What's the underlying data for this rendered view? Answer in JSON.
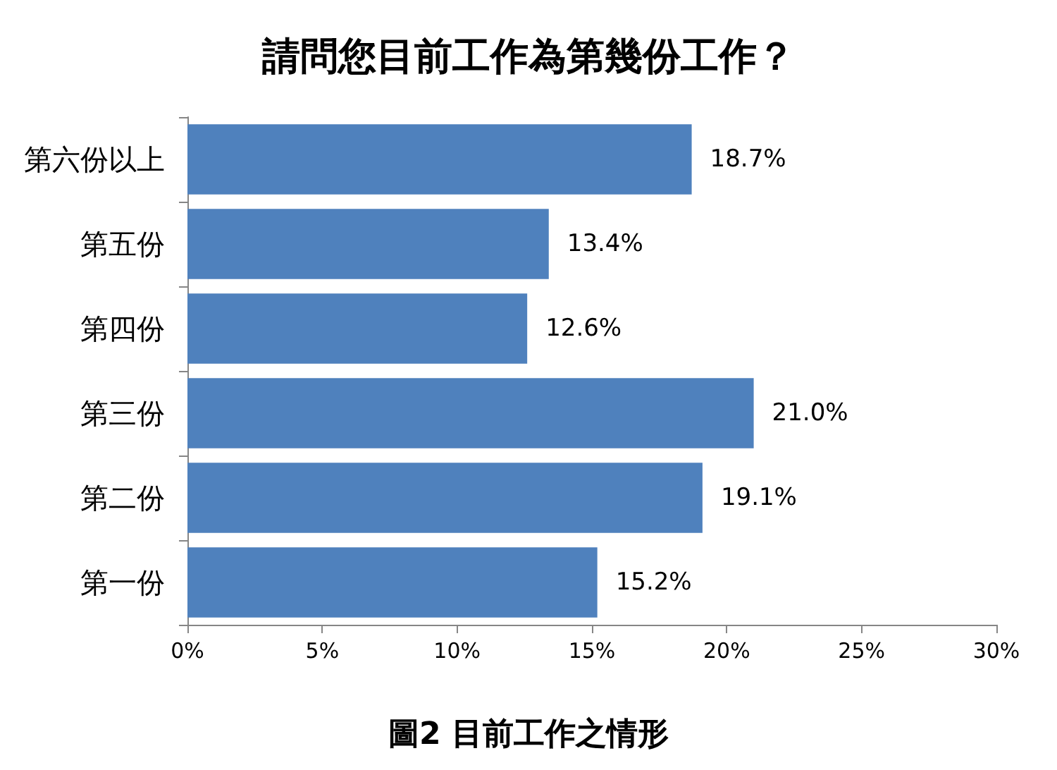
{
  "chart_data": {
    "type": "bar",
    "orientation": "horizontal",
    "title": "請問您目前工作為第幾份工作？",
    "categories": [
      "第六份以上",
      "第五份",
      "第四份",
      "第三份",
      "第二份",
      "第一份"
    ],
    "values": [
      18.7,
      13.4,
      12.6,
      21.0,
      19.1,
      15.2
    ],
    "color": "#4f81bd",
    "value_labels": [
      "18.7%",
      "13.4%",
      "12.6%",
      "21.0%",
      "19.1%",
      "15.2%"
    ],
    "xlim": [
      0,
      30
    ],
    "xticks": [
      {
        "value": 0,
        "label": "0%"
      },
      {
        "value": 5,
        "label": "5%"
      },
      {
        "value": 10,
        "label": "10%"
      },
      {
        "value": 15,
        "label": "15%"
      },
      {
        "value": 20,
        "label": "20%"
      },
      {
        "value": 25,
        "label": "25%"
      },
      {
        "value": 30,
        "label": "30%"
      }
    ],
    "grid": false,
    "annotations": [
      "圖2 目前工作之情形"
    ]
  }
}
